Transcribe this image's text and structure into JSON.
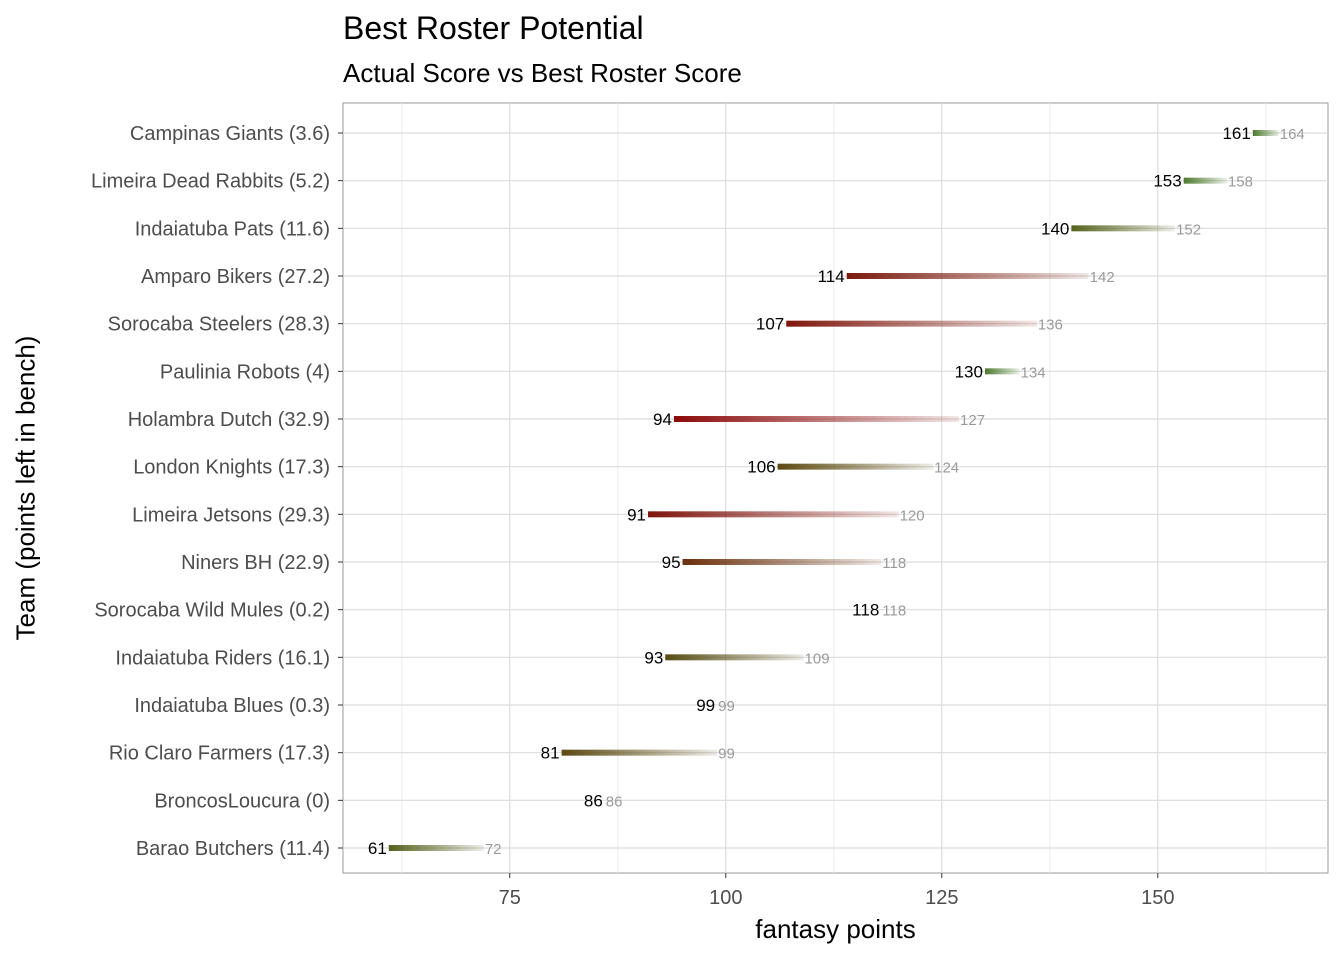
{
  "chart_data": {
    "type": "dumbbell-bar",
    "title": "Best Roster Potential",
    "subtitle": "Actual Score vs Best Roster Score",
    "xlabel": "fantasy points",
    "ylabel": "Team (points left in bench)",
    "xlim": [
      55.7,
      169.7
    ],
    "xticks": [
      75,
      100,
      125,
      150
    ],
    "grid": true,
    "teams": [
      {
        "label": "Campinas Giants (3.6)",
        "actual": 161,
        "best": 164,
        "color": "#4d7a2e"
      },
      {
        "label": "Limeira Dead Rabbits (5.2)",
        "actual": 153,
        "best": 158,
        "color": "#4d7a2e"
      },
      {
        "label": "Indaiatuba Pats (11.6)",
        "actual": 140,
        "best": 152,
        "color": "#55631c"
      },
      {
        "label": "Amparo Bikers (27.2)",
        "actual": 114,
        "best": 142,
        "color": "#7a1a0c"
      },
      {
        "label": "Sorocaba Steelers (28.3)",
        "actual": 107,
        "best": 136,
        "color": "#7f160c"
      },
      {
        "label": "Paulinia Robots (4)",
        "actual": 130,
        "best": 134,
        "color": "#4d7a2e"
      },
      {
        "label": "Holambra Dutch (32.9)",
        "actual": 94,
        "best": 127,
        "color": "#8b0a0a"
      },
      {
        "label": "London Knights (17.3)",
        "actual": 106,
        "best": 124,
        "color": "#5c4a10"
      },
      {
        "label": "Limeira Jetsons (29.3)",
        "actual": 91,
        "best": 120,
        "color": "#7f140c"
      },
      {
        "label": "Niners BH (22.9)",
        "actual": 95,
        "best": 118,
        "color": "#6b2f0a"
      },
      {
        "label": "Sorocaba Wild Mules (0.2)",
        "actual": 118,
        "best": 118,
        "color": "#4d7a2e"
      },
      {
        "label": "Indaiatuba Riders (16.1)",
        "actual": 93,
        "best": 109,
        "color": "#564c12"
      },
      {
        "label": "Indaiatuba Blues (0.3)",
        "actual": 99,
        "best": 99,
        "color": "#4d7a2e"
      },
      {
        "label": "Rio Claro Farmers (17.3)",
        "actual": 81,
        "best": 99,
        "color": "#5c4a10"
      },
      {
        "label": "BroncosLoucura (0)",
        "actual": 86,
        "best": 86,
        "color": "#4d7a2e"
      },
      {
        "label": "Barao Butchers (11.4)",
        "actual": 61,
        "best": 72,
        "color": "#55631c"
      }
    ]
  }
}
